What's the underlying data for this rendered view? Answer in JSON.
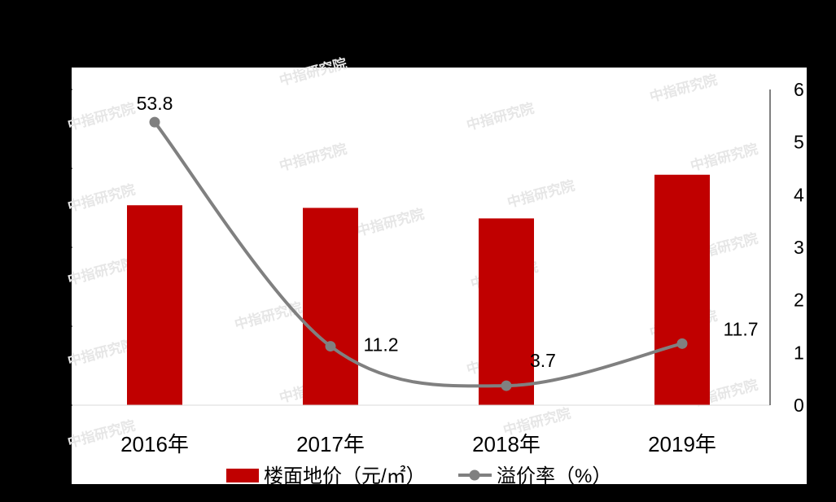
{
  "chart_data": {
    "type": "bar",
    "categories": [
      "2016年",
      "2017年",
      "2018年",
      "2019年"
    ],
    "series": [
      {
        "name": "楼面地价（元/㎡）",
        "kind": "bar",
        "axis": "left",
        "color": "#C00000",
        "values": [
          3800,
          3750,
          3550,
          4380
        ]
      },
      {
        "name": "溢价率（%）",
        "kind": "line",
        "axis": "right",
        "color": "#808080",
        "values": [
          53.8,
          11.2,
          3.7,
          11.7
        ],
        "labels": [
          "53.8",
          "11.2",
          "3.7",
          "11.7"
        ]
      }
    ],
    "y2_ticks": [
      "0",
      "1",
      "2",
      "3",
      "4",
      "5",
      "6"
    ],
    "y2lim": [
      0,
      60
    ],
    "ylim": [
      0,
      6000
    ],
    "grid": false,
    "legend_position": "bottom",
    "watermark": "中指研究院",
    "colors": {
      "page_background": "#000000",
      "plot_background": "#FFFFFF",
      "bar": "#C00000",
      "line": "#808080",
      "text": "#000000"
    }
  }
}
